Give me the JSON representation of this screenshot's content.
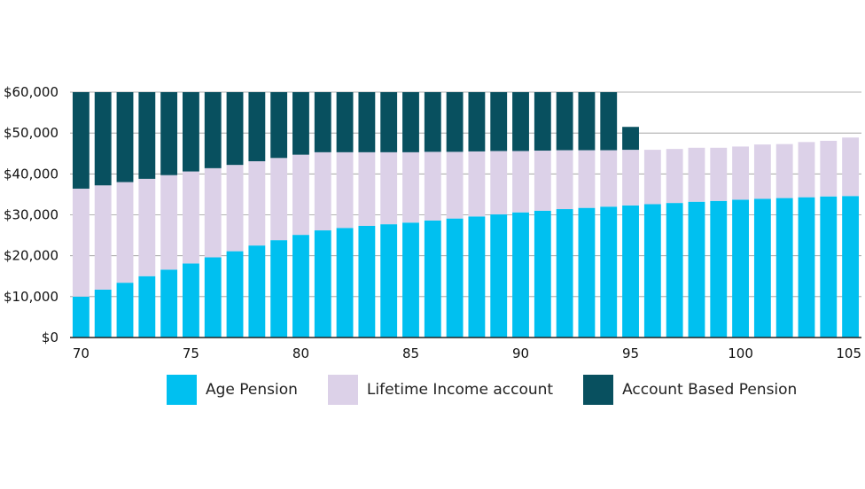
{
  "chart_data": {
    "type": "bar",
    "stacked": true,
    "x": [
      70,
      71,
      72,
      73,
      74,
      75,
      76,
      77,
      78,
      79,
      80,
      81,
      82,
      83,
      84,
      85,
      86,
      87,
      88,
      89,
      90,
      91,
      92,
      93,
      94,
      95,
      96,
      97,
      98,
      99,
      100,
      101,
      102,
      103,
      104,
      105
    ],
    "x_tick_labels": [
      "70",
      "75",
      "80",
      "85",
      "90",
      "95",
      "100",
      "105"
    ],
    "y_tick_labels": [
      "$0",
      "$10,000",
      "$20,000",
      "$30,000",
      "$40,000",
      "$50,000",
      "$60,000"
    ],
    "ylim": [
      0,
      60000
    ],
    "grid": "horizontal",
    "legend_position": "bottom",
    "series": [
      {
        "name": "Age Pension",
        "color": "#00c0f0",
        "values": [
          10000,
          11700,
          13400,
          15000,
          16600,
          18100,
          19600,
          21100,
          22500,
          23800,
          25100,
          26200,
          26800,
          27300,
          27700,
          28100,
          28600,
          29100,
          29600,
          30100,
          30600,
          31000,
          31400,
          31700,
          32000,
          32300,
          32600,
          32900,
          33200,
          33400,
          33700,
          33900,
          34100,
          34300,
          34500,
          34600
        ]
      },
      {
        "name": "Lifetime Income account",
        "color": "#dcd1e8",
        "values": [
          26400,
          25500,
          24600,
          23800,
          23100,
          22500,
          21800,
          21100,
          20600,
          20100,
          19600,
          19100,
          18500,
          18000,
          17600,
          17200,
          16800,
          16300,
          15900,
          15500,
          15000,
          14700,
          14400,
          14100,
          13800,
          13600,
          13300,
          13200,
          13200,
          13000,
          13000,
          13300,
          13200,
          13500,
          13600,
          14300
        ]
      },
      {
        "name": "Account Based Pension",
        "color": "#08505f",
        "values": [
          23600,
          22800,
          22000,
          21200,
          20300,
          19400,
          18600,
          17800,
          16900,
          16100,
          15300,
          14700,
          14700,
          14700,
          14700,
          14700,
          14600,
          14600,
          14500,
          14400,
          14400,
          14300,
          14200,
          14200,
          14200,
          5600,
          0,
          0,
          0,
          0,
          0,
          0,
          0,
          0,
          0,
          0
        ]
      }
    ]
  }
}
